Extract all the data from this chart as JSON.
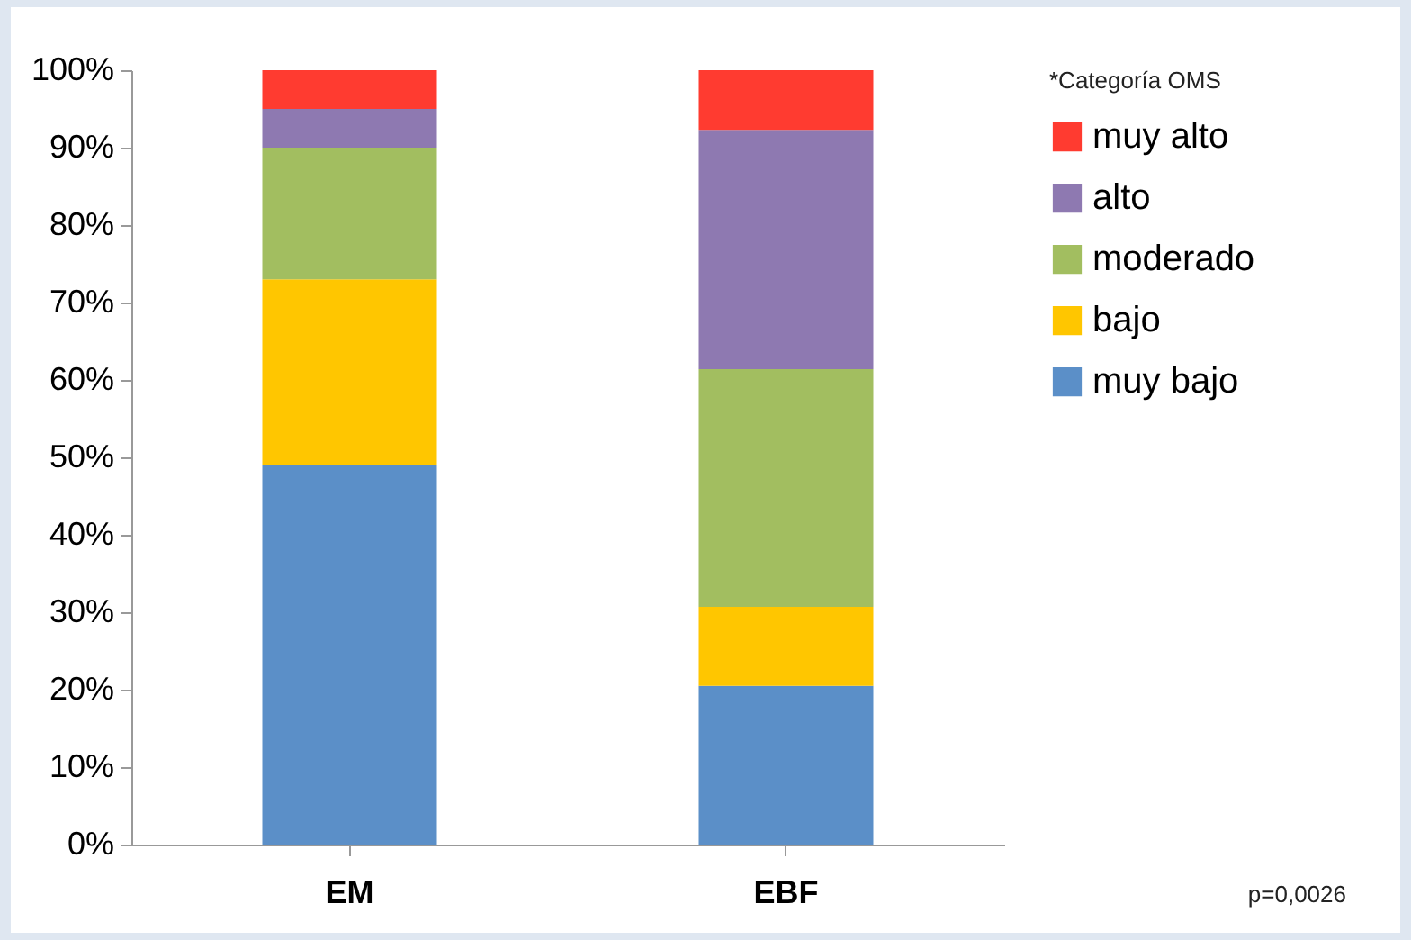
{
  "chart_data": {
    "type": "bar",
    "stacked": true,
    "categories": [
      "EM",
      "EBF"
    ],
    "series": [
      {
        "name": "muy bajo",
        "color": "#5b8fc8",
        "values": [
          49,
          20.5
        ]
      },
      {
        "name": "bajo",
        "color": "#ffc600",
        "values": [
          24,
          10.2
        ]
      },
      {
        "name": "moderado",
        "color": "#a2be60",
        "values": [
          17,
          30.7
        ]
      },
      {
        "name": "alto",
        "color": "#8e79b1",
        "values": [
          5,
          30.9
        ]
      },
      {
        "name": "muy alto",
        "color": "#ff3b30",
        "values": [
          5,
          7.7
        ]
      }
    ],
    "ylim": [
      0,
      100
    ],
    "yticks": [
      {
        "value": 0,
        "label": "0%"
      },
      {
        "value": 10,
        "label": "10%"
      },
      {
        "value": 20,
        "label": "20%"
      },
      {
        "value": 30,
        "label": "30%"
      },
      {
        "value": 40,
        "label": "40%"
      },
      {
        "value": 50,
        "label": "50%"
      },
      {
        "value": 60,
        "label": "60%"
      },
      {
        "value": 70,
        "label": "70%"
      },
      {
        "value": 80,
        "label": "80%"
      },
      {
        "value": 90,
        "label": "90%"
      },
      {
        "value": 100,
        "label": "100%"
      }
    ],
    "legend_title": "*Categoría OMS",
    "legend": "right",
    "grid": false,
    "annotations": [
      "p=0,0026"
    ]
  }
}
